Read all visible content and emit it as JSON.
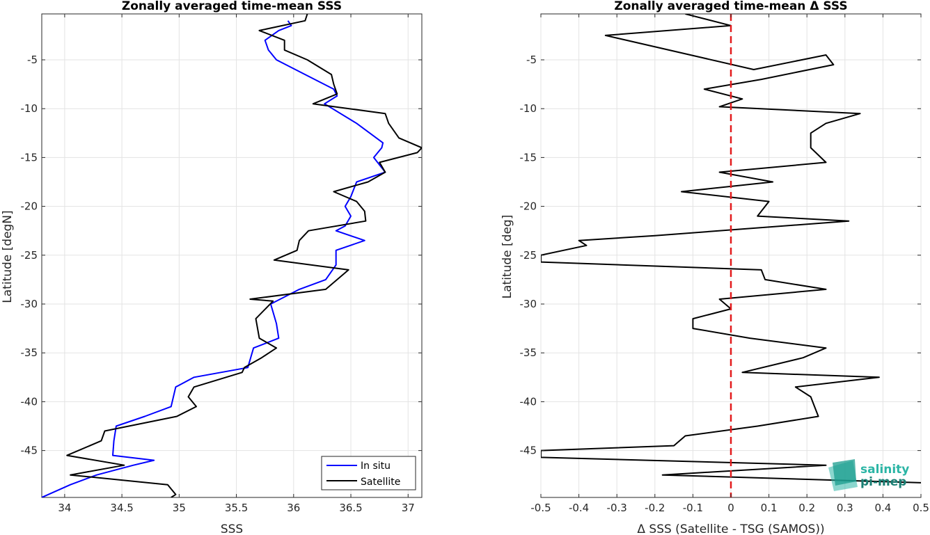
{
  "chart_data": [
    {
      "type": "line",
      "title": "Zonally averaged time-mean SSS",
      "xlabel": "SSS",
      "ylabel": "Latitude [degN]",
      "xlim": [
        33.8,
        37.12
      ],
      "ylim": [
        -49.8,
        -0.3
      ],
      "xticks": [
        34,
        34.5,
        35,
        35.5,
        36,
        36.5,
        37
      ],
      "xticklabels": [
        "34",
        "34.5",
        "35",
        "35.5",
        "36",
        "36.5",
        "37"
      ],
      "yticks": [
        -5,
        -10,
        -15,
        -20,
        -25,
        -30,
        -35,
        -40,
        -45
      ],
      "yticklabels": [
        "-5",
        "-10",
        "-15",
        "-20",
        "-25",
        "-30",
        "-35",
        "-40",
        "-45"
      ],
      "grid": true,
      "legend": "bottom-right",
      "series": [
        {
          "name": "In situ",
          "color": "#0000ff",
          "x": [
            35.95,
            35.98,
            35.87,
            35.75,
            35.78,
            35.85,
            36.1,
            36.35,
            36.38,
            36.27,
            36.55,
            36.78,
            36.77,
            36.7,
            36.8,
            36.55,
            36.5,
            36.45,
            36.5,
            36.45,
            36.37,
            36.62,
            36.37,
            36.37,
            36.28,
            36.05,
            35.8,
            35.85,
            35.87,
            35.65,
            35.6,
            35.13,
            34.97,
            34.93,
            34.7,
            34.45,
            34.43,
            34.42,
            34.78,
            34.6,
            34.28,
            34.05,
            33.8
          ],
          "y": [
            -1.0,
            -1.5,
            -2.0,
            -3.0,
            -4.0,
            -5.0,
            -6.5,
            -8.0,
            -8.7,
            -9.5,
            -11.5,
            -13.5,
            -14.0,
            -15.0,
            -16.5,
            -17.5,
            -19.0,
            -20.0,
            -21.0,
            -22.0,
            -22.5,
            -23.5,
            -24.5,
            -26.0,
            -27.5,
            -28.5,
            -30.0,
            -32.0,
            -33.5,
            -34.5,
            -36.5,
            -37.5,
            -38.5,
            -40.5,
            -41.5,
            -42.5,
            -44.0,
            -45.5,
            -46.0,
            -46.5,
            -47.5,
            -48.5,
            -49.8
          ]
        },
        {
          "name": "Satellite",
          "color": "#000000",
          "x": [
            36.12,
            36.1,
            35.7,
            35.92,
            35.92,
            36.12,
            36.33,
            36.35,
            36.38,
            36.17,
            36.8,
            36.83,
            36.92,
            37.12,
            37.08,
            36.75,
            36.8,
            36.65,
            36.35,
            36.55,
            36.62,
            36.63,
            36.13,
            36.05,
            36.03,
            35.83,
            36.48,
            36.28,
            35.62,
            35.82,
            35.67,
            35.7,
            35.85,
            35.72,
            35.57,
            35.55,
            35.13,
            35.08,
            35.15,
            34.98,
            34.35,
            34.32,
            34.02,
            34.52,
            34.05,
            34.9,
            34.97,
            34.93
          ],
          "y": [
            -0.3,
            -1.0,
            -2.0,
            -3.0,
            -4.0,
            -5.0,
            -6.5,
            -7.5,
            -8.5,
            -9.5,
            -10.5,
            -11.5,
            -13.0,
            -14.0,
            -14.5,
            -15.5,
            -16.5,
            -17.5,
            -18.5,
            -19.5,
            -20.5,
            -21.5,
            -22.5,
            -23.5,
            -24.5,
            -25.5,
            -26.5,
            -28.5,
            -29.5,
            -29.7,
            -31.5,
            -33.5,
            -34.5,
            -35.5,
            -36.5,
            -37.0,
            -38.5,
            -39.5,
            -40.5,
            -41.5,
            -43.0,
            -44.0,
            -45.5,
            -46.5,
            -47.5,
            -48.5,
            -49.5,
            -49.8
          ]
        }
      ]
    },
    {
      "type": "line",
      "title": "Zonally averaged time-mean Δ SSS",
      "xlabel": "Δ SSS (Satellite - TSG (SAMOS))",
      "ylabel": "Latitude [deg]",
      "xlim": [
        -0.5,
        0.5
      ],
      "ylim": [
        -49.8,
        -0.3
      ],
      "xticks": [
        -0.5,
        -0.4,
        -0.3,
        -0.2,
        -0.1,
        0,
        0.1,
        0.2,
        0.3,
        0.4,
        0.5
      ],
      "xticklabels": [
        "-0.5",
        "-0.4",
        "-0.3",
        "-0.2",
        "-0.1",
        "0",
        "0.1",
        "0.2",
        "0.3",
        "0.4",
        "0.5"
      ],
      "yticks": [
        -5,
        -10,
        -15,
        -20,
        -25,
        -30,
        -35,
        -40,
        -45
      ],
      "yticklabels": [
        "-5",
        "-10",
        "-15",
        "-20",
        "-25",
        "-30",
        "-35",
        "-40",
        "-45"
      ],
      "grid": true,
      "reference_line": {
        "x": 0,
        "color": "#e31a1c",
        "style": "dashed"
      },
      "series": [
        {
          "color": "#000000",
          "x": [
            -0.12,
            0.0,
            -0.33,
            0.06,
            0.25,
            0.27,
            0.08,
            -0.07,
            0.03,
            -0.03,
            0.34,
            0.25,
            0.21,
            0.21,
            0.25,
            -0.03,
            0.11,
            -0.13,
            0.1,
            0.07,
            0.31,
            -0.2,
            -0.4,
            -0.38,
            -0.5,
            -0.5,
            0.08,
            0.09,
            0.25,
            -0.03,
            0.0,
            -0.1,
            -0.1,
            0.05,
            0.25,
            0.19,
            0.03,
            0.39,
            0.17,
            0.21,
            0.22,
            0.23,
            0.07,
            -0.12,
            -0.15,
            -0.5,
            -0.5,
            0.25,
            -0.18,
            0.5
          ],
          "y": [
            -0.3,
            -1.5,
            -2.5,
            -6.0,
            -4.5,
            -5.5,
            -7.0,
            -8.0,
            -9.0,
            -9.8,
            -10.5,
            -11.5,
            -12.5,
            -14.0,
            -15.5,
            -16.5,
            -17.5,
            -18.5,
            -19.5,
            -21.0,
            -21.5,
            -23.0,
            -23.5,
            -24.0,
            -25.0,
            -25.7,
            -26.5,
            -27.5,
            -28.5,
            -29.5,
            -30.5,
            -31.5,
            -32.5,
            -33.5,
            -34.5,
            -35.5,
            -37.0,
            -37.5,
            -38.5,
            -39.5,
            -40.5,
            -41.5,
            -42.5,
            -43.5,
            -44.5,
            -45.0,
            -45.7,
            -46.5,
            -47.5,
            -48.3
          ]
        }
      ]
    }
  ],
  "logo": {
    "line1": "salinity",
    "line2": "pi-mep",
    "color1": "#2bb5a5",
    "color2": "#1a7f74"
  }
}
